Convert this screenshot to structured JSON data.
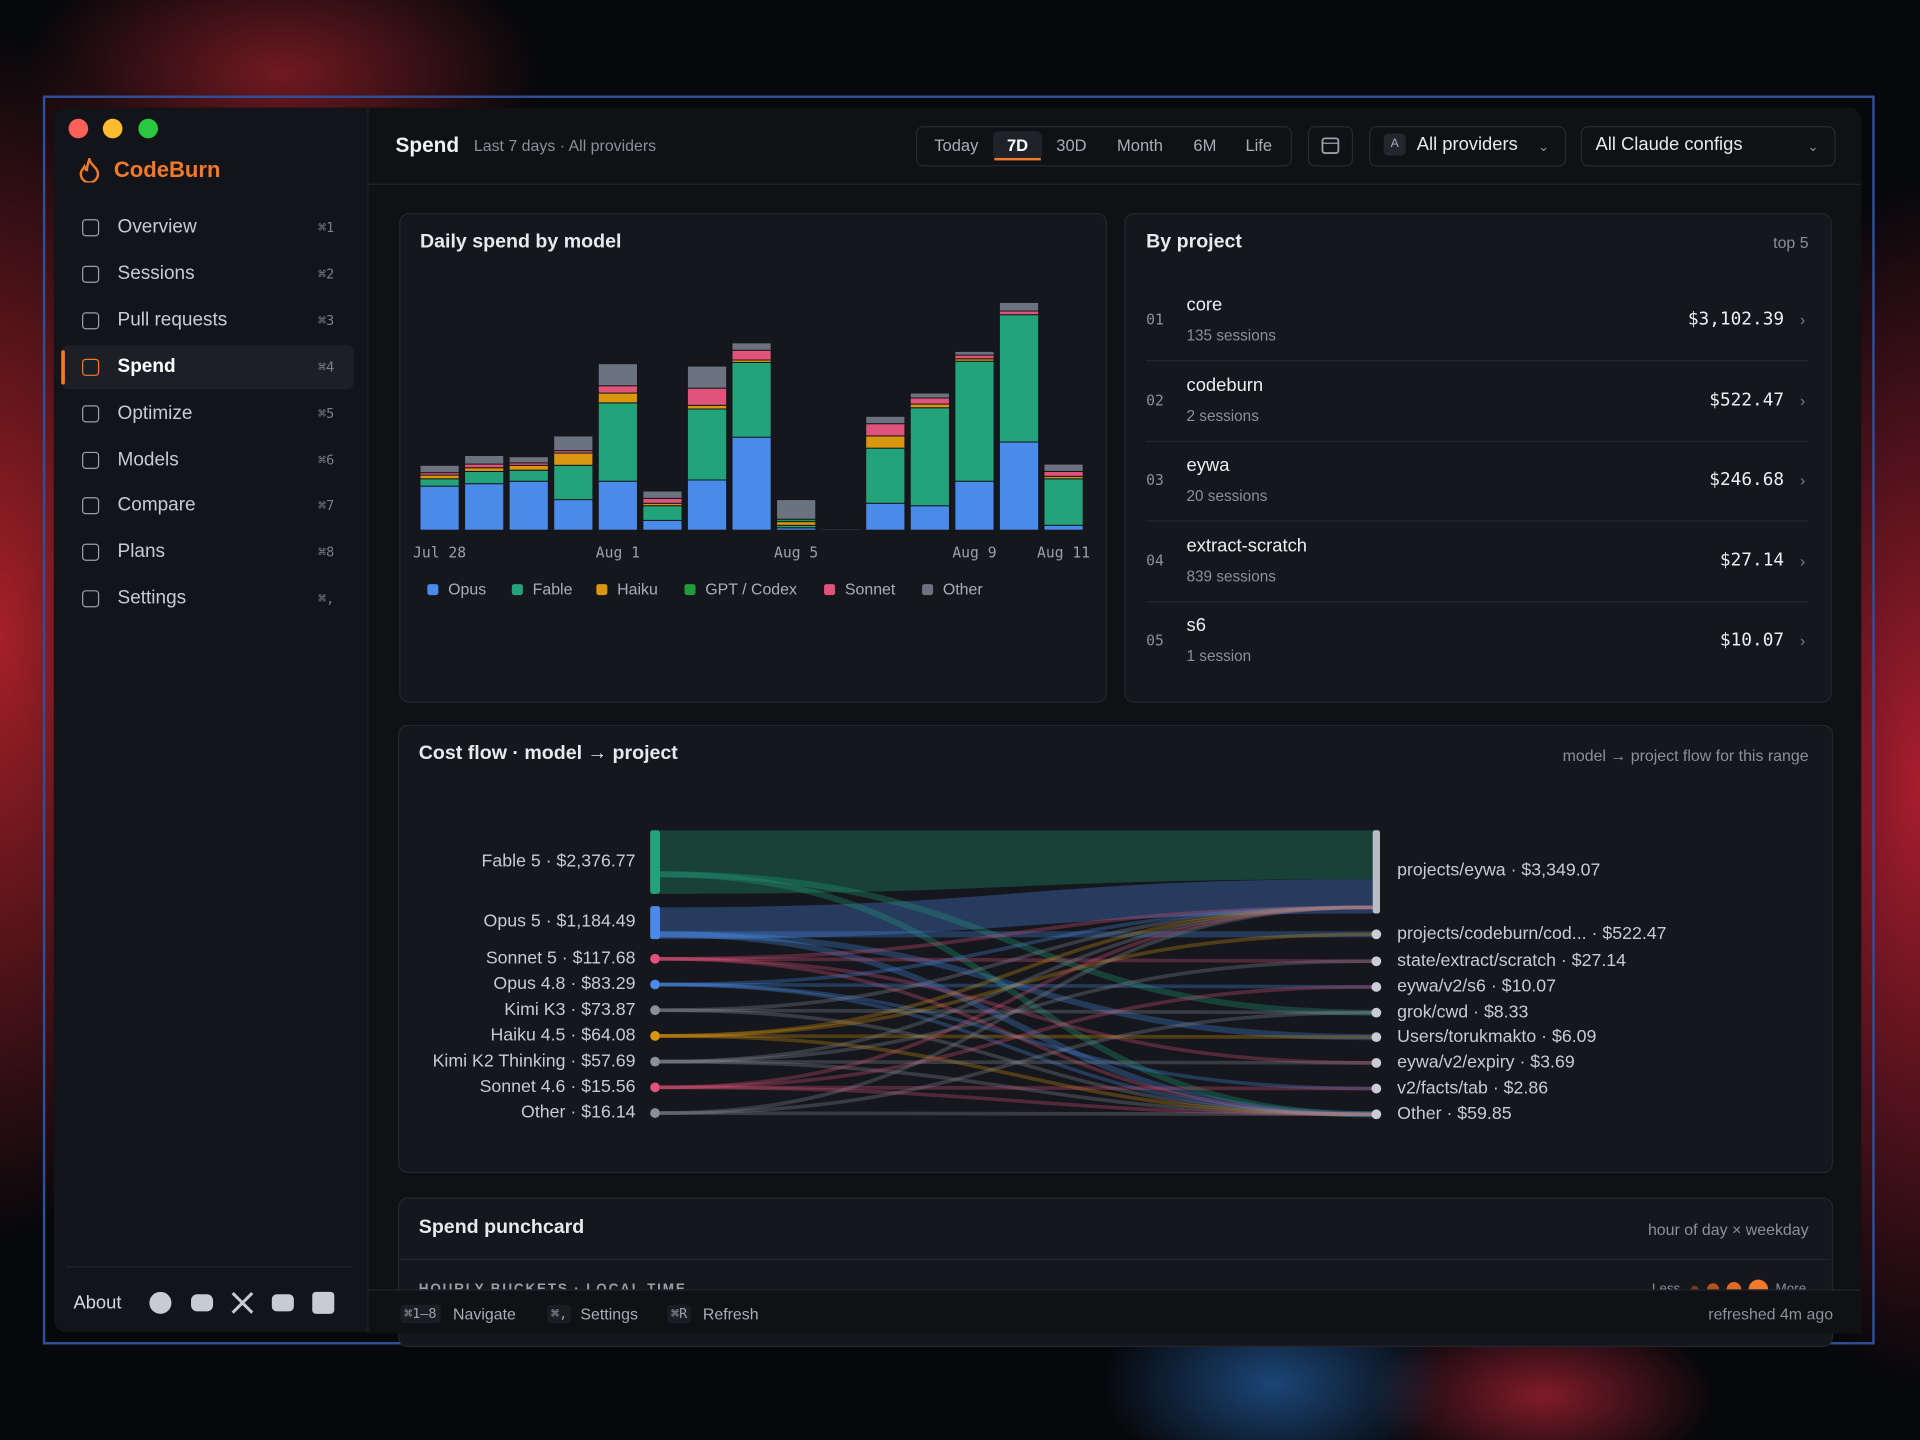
{
  "window": {
    "brand": "CodeBurn"
  },
  "sidebar": {
    "nav": [
      {
        "label": "Overview",
        "shortcut": "⌘1"
      },
      {
        "label": "Sessions",
        "shortcut": "⌘2"
      },
      {
        "label": "Pull requests",
        "shortcut": "⌘3"
      },
      {
        "label": "Spend",
        "shortcut": "⌘4"
      },
      {
        "label": "Optimize",
        "shortcut": "⌘5"
      },
      {
        "label": "Models",
        "shortcut": "⌘6"
      },
      {
        "label": "Compare",
        "shortcut": "⌘7"
      },
      {
        "label": "Plans",
        "shortcut": "⌘8"
      },
      {
        "label": "Settings",
        "shortcut": "⌘,"
      }
    ],
    "active_index": 3,
    "about": "About"
  },
  "header": {
    "title": "Spend",
    "subtitle": "Last 7 days · All providers",
    "ranges": [
      "Today",
      "7D",
      "30D",
      "Month",
      "6M",
      "Life"
    ],
    "active_range": 1,
    "provider_badge": "A",
    "provider": "All providers",
    "config": "All Claude configs"
  },
  "chart_data": {
    "type": "bar",
    "stacked": true,
    "title": "Daily spend by model",
    "categories": [
      "Jul 28",
      null,
      null,
      null,
      "Aug 1",
      null,
      null,
      null,
      "Aug 5",
      null,
      null,
      null,
      "Aug 9",
      null,
      "Aug 11"
    ],
    "series": [
      {
        "name": "Opus",
        "color": "#4a8ae8",
        "values": [
          36,
          38,
          40,
          25,
          40,
          8,
          41,
          76,
          2,
          0,
          22,
          20,
          40,
          72,
          4
        ]
      },
      {
        "name": "Fable",
        "color": "#22a37a",
        "values": [
          6,
          10,
          9,
          28,
          64,
          12,
          58,
          61,
          2,
          0,
          45,
          80,
          98,
          104,
          38
        ]
      },
      {
        "name": "Haiku",
        "color": "#d9960f",
        "values": [
          3,
          3,
          4,
          10,
          8,
          2,
          3,
          2,
          3,
          0,
          10,
          3,
          2,
          0,
          2
        ]
      },
      {
        "name": "GPT / Codex",
        "color": "#1f9d3a",
        "values": [
          0,
          0,
          0,
          0,
          0,
          0,
          0,
          0,
          2,
          0,
          0,
          0,
          0,
          0,
          0
        ]
      },
      {
        "name": "Sonnet",
        "color": "#e0537a",
        "values": [
          2,
          3,
          2,
          2,
          6,
          4,
          14,
          8,
          0,
          0,
          10,
          5,
          3,
          3,
          4
        ]
      },
      {
        "name": "Other",
        "color": "#6b7280",
        "values": [
          6,
          7,
          5,
          12,
          18,
          6,
          18,
          6,
          16,
          1,
          6,
          4,
          3,
          7,
          6
        ]
      }
    ],
    "ylim": [
      0,
      200
    ]
  },
  "by_project": {
    "title": "By project",
    "note": "top 5",
    "rows": [
      {
        "rank": "01",
        "name": "core",
        "sessions": "135 sessions",
        "cost": "$3,102.39"
      },
      {
        "rank": "02",
        "name": "codeburn",
        "sessions": "2 sessions",
        "cost": "$522.47"
      },
      {
        "rank": "03",
        "name": "eywa",
        "sessions": "20 sessions",
        "cost": "$246.68"
      },
      {
        "rank": "04",
        "name": "extract-scratch",
        "sessions": "839 sessions",
        "cost": "$27.14"
      },
      {
        "rank": "05",
        "name": "s6",
        "sessions": "1 session",
        "cost": "$10.07"
      }
    ]
  },
  "cost_flow": {
    "title": "Cost flow · model → project",
    "note": "model → project flow for this range",
    "sources": [
      {
        "label": "Fable 5 · $2,376.77",
        "color": "#22a37a"
      },
      {
        "label": "Opus 5 · $1,184.49",
        "color": "#4a8ae8"
      },
      {
        "label": "Sonnet 5 · $117.68",
        "color": "#e0537a"
      },
      {
        "label": "Opus 4.8 · $83.29",
        "color": "#4a8ae8"
      },
      {
        "label": "Kimi K3 · $73.87",
        "color": "#8b8f98"
      },
      {
        "label": "Haiku 4.5 · $64.08",
        "color": "#d9960f"
      },
      {
        "label": "Kimi K2 Thinking · $57.69",
        "color": "#8b8f98"
      },
      {
        "label": "Sonnet 4.6 · $15.56",
        "color": "#e0537a"
      },
      {
        "label": "Other · $16.14",
        "color": "#8b8f98"
      }
    ],
    "targets": [
      {
        "label": "projects/eywa · $3,349.07"
      },
      {
        "label": "projects/codeburn/cod... · $522.47"
      },
      {
        "label": "state/extract/scratch · $27.14"
      },
      {
        "label": "eywa/v2/s6 · $10.07"
      },
      {
        "label": "grok/cwd · $8.33"
      },
      {
        "label": "Users/torukmakto · $6.09"
      },
      {
        "label": "eywa/v2/expiry · $3.69"
      },
      {
        "label": "v2/facts/tab · $2.86"
      },
      {
        "label": "Other · $59.85"
      }
    ]
  },
  "punchcard": {
    "title": "Spend punchcard",
    "note": "hour of day × weekday",
    "subtitle": "HOURLY BUCKETS · LOCAL TIME",
    "less": "Less",
    "more": "More"
  },
  "footer": {
    "hints": [
      {
        "key": "⌘1–8",
        "label": "Navigate"
      },
      {
        "key": "⌘,",
        "label": "Settings"
      },
      {
        "key": "⌘R",
        "label": "Refresh"
      }
    ],
    "status": "refreshed 4m ago"
  }
}
